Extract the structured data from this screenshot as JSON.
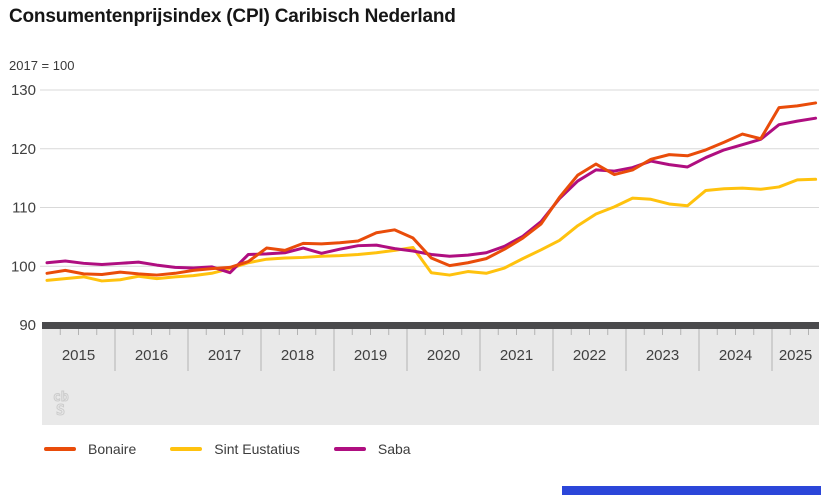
{
  "header": {
    "title": "Consumentenprijsindex (CPI) Caribisch Nederland",
    "subtitle": "2017 = 100"
  },
  "colors": {
    "grid": "#d9d9d9",
    "axis_bar": "#4a4a4c",
    "axis_band": "#e9e9e9",
    "tick": "#b2b2b2",
    "axis_label": "#404040",
    "logo_gray": "#cccccc",
    "bottom_bar_blue": "#2b46d9"
  },
  "chart_data": {
    "type": "line",
    "title": "Consumentenprijsindex (CPI) Caribisch Nederland",
    "subtitle": "2017 = 100",
    "x_start": "2015 Q1",
    "x_end": "2025 Q3",
    "x_step": "quarter",
    "n_points": 43,
    "year_labels": [
      "2015",
      "2016",
      "2017",
      "2018",
      "2019",
      "2020",
      "2021",
      "2022",
      "2023",
      "2024",
      "2025"
    ],
    "yticks": [
      90,
      100,
      110,
      120,
      130
    ],
    "ylim": [
      90,
      130
    ],
    "grid": "horizontal",
    "legend_position": "bottom",
    "series": [
      {
        "name": "Bonaire",
        "color": "#e94c0a",
        "values": [
          98.8,
          99.3,
          98.7,
          98.6,
          99.0,
          98.7,
          98.5,
          98.8,
          99.3,
          99.6,
          99.8,
          100.8,
          103.1,
          102.7,
          103.9,
          103.8,
          104.0,
          104.3,
          105.7,
          106.2,
          104.8,
          101.4,
          100.1,
          100.6,
          101.3,
          102.9,
          104.8,
          107.2,
          111.7,
          115.5,
          117.4,
          115.6,
          116.4,
          118.2,
          119.0,
          118.8,
          119.8,
          121.1,
          122.5,
          121.7,
          127.0,
          127.3,
          127.8
        ]
      },
      {
        "name": "Sint Eustatius",
        "color": "#ffc20e",
        "values": [
          97.6,
          97.9,
          98.2,
          97.5,
          97.7,
          98.3,
          97.9,
          98.2,
          98.4,
          98.8,
          99.6,
          100.6,
          101.2,
          101.4,
          101.5,
          101.7,
          101.8,
          102.0,
          102.3,
          102.7,
          103.2,
          98.9,
          98.5,
          99.1,
          98.8,
          99.7,
          101.3,
          102.8,
          104.4,
          106.9,
          108.9,
          110.1,
          111.6,
          111.4,
          110.6,
          110.3,
          112.9,
          113.2,
          113.3,
          113.1,
          113.5,
          114.7,
          114.8
        ]
      },
      {
        "name": "Saba",
        "color": "#af0e80",
        "values": [
          100.6,
          100.9,
          100.5,
          100.3,
          100.5,
          100.7,
          100.2,
          99.8,
          99.7,
          99.9,
          98.9,
          102.0,
          102.1,
          102.3,
          103.1,
          102.2,
          102.9,
          103.5,
          103.6,
          103.0,
          102.6,
          102.0,
          101.7,
          101.9,
          102.3,
          103.4,
          105.1,
          107.6,
          111.5,
          114.5,
          116.4,
          116.2,
          116.8,
          117.9,
          117.3,
          116.9,
          118.5,
          119.8,
          120.7,
          121.6,
          124.1,
          124.7,
          125.2
        ]
      }
    ]
  },
  "footer": {
    "logo": "cbs-logo"
  }
}
